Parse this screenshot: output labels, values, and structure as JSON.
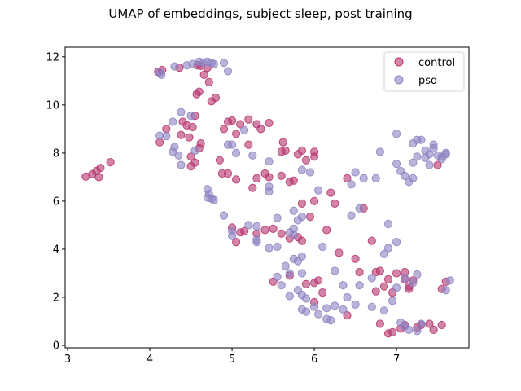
{
  "chart_data": {
    "type": "scatter",
    "title": "UMAP of embeddings, subject sleep, post training",
    "xlabel": "",
    "ylabel": "",
    "xlim": [
      2.97,
      7.88
    ],
    "ylim": [
      -0.1,
      12.4
    ],
    "xticks": [
      3,
      4,
      5,
      6,
      7
    ],
    "yticks": [
      0,
      2,
      4,
      6,
      8,
      10,
      12
    ],
    "grid": false,
    "legend_position": "top-right",
    "series": [
      {
        "name": "control",
        "color": "#b5346c",
        "points": [
          [
            3.22,
            7.02
          ],
          [
            3.3,
            7.12
          ],
          [
            3.35,
            7.25
          ],
          [
            3.4,
            7.38
          ],
          [
            3.38,
            7.0
          ],
          [
            3.52,
            7.62
          ],
          [
            4.1,
            11.38
          ],
          [
            4.15,
            11.45
          ],
          [
            4.36,
            11.55
          ],
          [
            4.58,
            11.65
          ],
          [
            4.62,
            11.62
          ],
          [
            4.7,
            11.55
          ],
          [
            4.66,
            11.25
          ],
          [
            4.72,
            10.95
          ],
          [
            4.6,
            10.55
          ],
          [
            4.57,
            10.45
          ],
          [
            4.8,
            10.3
          ],
          [
            4.75,
            10.15
          ],
          [
            4.55,
            9.55
          ],
          [
            4.12,
            8.45
          ],
          [
            4.2,
            9.0
          ],
          [
            4.4,
            9.3
          ],
          [
            4.45,
            9.15
          ],
          [
            4.52,
            9.08
          ],
          [
            4.48,
            8.65
          ],
          [
            4.38,
            8.75
          ],
          [
            4.62,
            8.4
          ],
          [
            4.6,
            8.2
          ],
          [
            4.5,
            7.85
          ],
          [
            4.55,
            7.6
          ],
          [
            4.5,
            7.45
          ],
          [
            4.85,
            7.7
          ],
          [
            4.9,
            9.0
          ],
          [
            4.95,
            9.3
          ],
          [
            5.0,
            9.35
          ],
          [
            5.1,
            9.2
          ],
          [
            5.05,
            8.8
          ],
          [
            5.2,
            9.4
          ],
          [
            5.3,
            9.2
          ],
          [
            5.35,
            9.0
          ],
          [
            5.45,
            9.25
          ],
          [
            5.2,
            8.35
          ],
          [
            4.88,
            7.15
          ],
          [
            4.95,
            7.15
          ],
          [
            5.05,
            6.9
          ],
          [
            5.25,
            6.55
          ],
          [
            5.3,
            6.95
          ],
          [
            5.4,
            7.15
          ],
          [
            5.45,
            7.0
          ],
          [
            5.6,
            7.05
          ],
          [
            5.7,
            6.8
          ],
          [
            5.75,
            6.85
          ],
          [
            5.6,
            8.05
          ],
          [
            5.65,
            8.1
          ],
          [
            5.62,
            8.45
          ],
          [
            5.8,
            7.95
          ],
          [
            5.85,
            8.1
          ],
          [
            6.0,
            8.05
          ],
          [
            6.0,
            7.85
          ],
          [
            5.9,
            7.7
          ],
          [
            5.85,
            5.9
          ],
          [
            6.0,
            6.0
          ],
          [
            6.2,
            6.35
          ],
          [
            6.25,
            5.9
          ],
          [
            6.4,
            6.95
          ],
          [
            6.6,
            5.7
          ],
          [
            5.0,
            4.9
          ],
          [
            5.05,
            4.3
          ],
          [
            5.1,
            4.7
          ],
          [
            5.15,
            4.75
          ],
          [
            5.3,
            4.65
          ],
          [
            5.4,
            4.8
          ],
          [
            5.6,
            4.65
          ],
          [
            5.7,
            4.45
          ],
          [
            5.8,
            4.5
          ],
          [
            5.85,
            4.35
          ],
          [
            5.5,
            4.85
          ],
          [
            5.7,
            2.9
          ],
          [
            5.9,
            2.55
          ],
          [
            6.0,
            2.6
          ],
          [
            6.05,
            2.7
          ],
          [
            6.1,
            2.2
          ],
          [
            6.3,
            3.85
          ],
          [
            6.5,
            3.6
          ],
          [
            6.55,
            3.05
          ],
          [
            6.7,
            4.35
          ],
          [
            6.75,
            3.05
          ],
          [
            6.8,
            3.1
          ],
          [
            6.75,
            2.25
          ],
          [
            6.85,
            2.45
          ],
          [
            6.9,
            2.75
          ],
          [
            6.95,
            2.2
          ],
          [
            7.0,
            3.0
          ],
          [
            7.1,
            3.05
          ],
          [
            7.1,
            2.75
          ],
          [
            7.15,
            2.35
          ],
          [
            7.2,
            2.7
          ],
          [
            7.15,
            2.45
          ],
          [
            6.8,
            0.9
          ],
          [
            6.9,
            0.5
          ],
          [
            6.95,
            0.55
          ],
          [
            7.05,
            0.7
          ],
          [
            7.1,
            0.85
          ],
          [
            7.25,
            0.75
          ],
          [
            7.3,
            0.85
          ],
          [
            7.4,
            0.9
          ],
          [
            7.55,
            0.85
          ],
          [
            7.45,
            0.65
          ],
          [
            7.55,
            2.35
          ],
          [
            7.6,
            2.65
          ],
          [
            7.5,
            7.5
          ],
          [
            5.5,
            2.65
          ],
          [
            6.0,
            1.8
          ],
          [
            6.4,
            1.25
          ],
          [
            5.95,
            5.35
          ],
          [
            6.15,
            4.8
          ]
        ]
      },
      {
        "name": "psd",
        "color": "#8c82c2",
        "points": [
          [
            4.12,
            11.35
          ],
          [
            4.14,
            11.25
          ],
          [
            4.3,
            11.6
          ],
          [
            4.45,
            11.65
          ],
          [
            4.52,
            11.7
          ],
          [
            4.6,
            11.8
          ],
          [
            4.65,
            11.75
          ],
          [
            4.7,
            11.8
          ],
          [
            4.75,
            11.75
          ],
          [
            4.78,
            11.7
          ],
          [
            4.9,
            11.75
          ],
          [
            4.95,
            11.4
          ],
          [
            4.38,
            9.7
          ],
          [
            4.5,
            9.55
          ],
          [
            4.28,
            9.3
          ],
          [
            4.12,
            8.72
          ],
          [
            4.2,
            8.7
          ],
          [
            4.3,
            8.25
          ],
          [
            4.28,
            8.05
          ],
          [
            4.35,
            7.9
          ],
          [
            4.38,
            7.5
          ],
          [
            4.55,
            8.1
          ],
          [
            4.95,
            8.35
          ],
          [
            5.0,
            8.35
          ],
          [
            5.05,
            8.0
          ],
          [
            5.15,
            8.95
          ],
          [
            5.25,
            7.9
          ],
          [
            5.45,
            7.65
          ],
          [
            4.7,
            6.5
          ],
          [
            4.72,
            6.3
          ],
          [
            4.7,
            6.15
          ],
          [
            4.75,
            6.1
          ],
          [
            4.78,
            6.05
          ],
          [
            4.9,
            5.4
          ],
          [
            5.0,
            4.75
          ],
          [
            5.0,
            4.55
          ],
          [
            5.2,
            5.0
          ],
          [
            5.3,
            4.95
          ],
          [
            5.3,
            4.4
          ],
          [
            5.3,
            4.3
          ],
          [
            5.45,
            6.6
          ],
          [
            5.45,
            6.4
          ],
          [
            5.55,
            5.3
          ],
          [
            5.7,
            4.7
          ],
          [
            5.75,
            4.85
          ],
          [
            5.75,
            4.6
          ],
          [
            5.8,
            5.2
          ],
          [
            5.85,
            5.35
          ],
          [
            5.75,
            5.6
          ],
          [
            5.85,
            7.3
          ],
          [
            5.95,
            7.2
          ],
          [
            6.05,
            6.45
          ],
          [
            5.45,
            4.05
          ],
          [
            5.55,
            4.1
          ],
          [
            5.65,
            3.3
          ],
          [
            5.7,
            3.0
          ],
          [
            5.75,
            3.6
          ],
          [
            5.8,
            3.5
          ],
          [
            5.85,
            3.7
          ],
          [
            5.85,
            3.0
          ],
          [
            5.55,
            2.85
          ],
          [
            5.6,
            2.5
          ],
          [
            5.7,
            2.05
          ],
          [
            5.8,
            2.3
          ],
          [
            5.85,
            2.1
          ],
          [
            5.9,
            1.95
          ],
          [
            5.85,
            1.5
          ],
          [
            5.9,
            1.4
          ],
          [
            6.0,
            1.6
          ],
          [
            6.05,
            1.3
          ],
          [
            6.15,
            1.55
          ],
          [
            6.15,
            1.1
          ],
          [
            6.2,
            1.05
          ],
          [
            6.25,
            1.65
          ],
          [
            6.35,
            1.5
          ],
          [
            6.1,
            4.1
          ],
          [
            6.25,
            3.1
          ],
          [
            6.35,
            2.5
          ],
          [
            6.4,
            2.0
          ],
          [
            6.5,
            1.7
          ],
          [
            6.55,
            2.5
          ],
          [
            6.7,
            2.8
          ],
          [
            6.85,
            1.45
          ],
          [
            6.85,
            3.8
          ],
          [
            6.9,
            4.05
          ],
          [
            7.0,
            4.3
          ],
          [
            6.9,
            5.05
          ],
          [
            6.6,
            6.95
          ],
          [
            6.75,
            6.95
          ],
          [
            6.5,
            7.2
          ],
          [
            6.45,
            6.7
          ],
          [
            6.45,
            5.4
          ],
          [
            6.55,
            5.7
          ],
          [
            7.0,
            7.55
          ],
          [
            7.05,
            7.25
          ],
          [
            7.1,
            7.05
          ],
          [
            7.2,
            7.6
          ],
          [
            7.25,
            7.85
          ],
          [
            7.2,
            8.4
          ],
          [
            7.25,
            8.55
          ],
          [
            7.3,
            8.55
          ],
          [
            7.35,
            8.1
          ],
          [
            7.4,
            7.95
          ],
          [
            7.45,
            8.2
          ],
          [
            7.45,
            8.35
          ],
          [
            7.4,
            7.5
          ],
          [
            7.5,
            7.9
          ],
          [
            7.55,
            7.85
          ],
          [
            7.6,
            7.95
          ],
          [
            7.6,
            8.0
          ],
          [
            7.55,
            7.75
          ],
          [
            7.35,
            7.8
          ],
          [
            7.2,
            6.95
          ],
          [
            7.15,
            6.8
          ],
          [
            7.0,
            8.8
          ],
          [
            6.8,
            8.05
          ],
          [
            7.1,
            2.8
          ],
          [
            7.2,
            2.6
          ],
          [
            7.25,
            2.95
          ],
          [
            7.0,
            2.4
          ],
          [
            7.05,
            0.95
          ],
          [
            7.1,
            0.8
          ],
          [
            7.15,
            0.65
          ],
          [
            7.25,
            0.6
          ],
          [
            7.3,
            0.9
          ],
          [
            7.6,
            2.3
          ],
          [
            7.65,
            2.7
          ],
          [
            6.95,
            1.85
          ],
          [
            6.7,
            1.6
          ]
        ]
      }
    ],
    "legend_label_control": "control",
    "legend_label_psd": "psd"
  }
}
